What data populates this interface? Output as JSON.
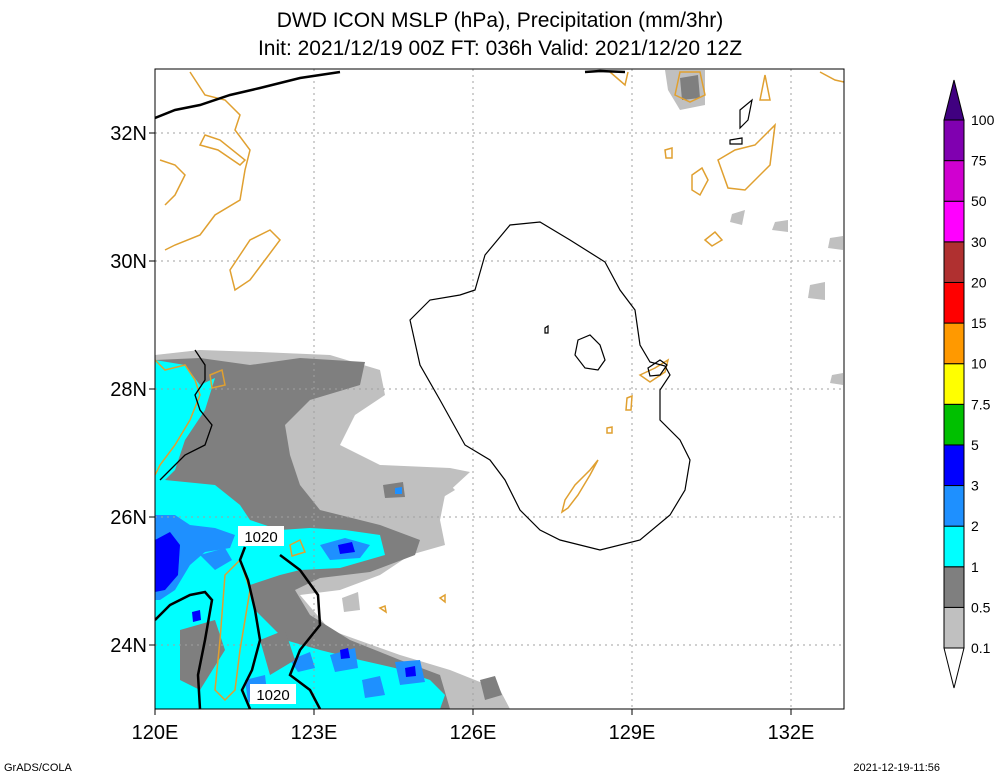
{
  "title_line1": "DWD ICON MSLP (hPa), Precipitation (mm/3hr)",
  "title_line2": "Init: 2021/12/19 00Z  FT: 036h  Valid: 2021/12/20 12Z",
  "footer_left": "GrADS/COLA",
  "footer_right": "2021-12-19-11:56",
  "map": {
    "lon_range": [
      120,
      133
    ],
    "lat_range": [
      23,
      33
    ],
    "lon_ticks": [
      {
        "value": 120,
        "label": "120E"
      },
      {
        "value": 123,
        "label": "123E"
      },
      {
        "value": 126,
        "label": "126E"
      },
      {
        "value": 129,
        "label": "129E"
      },
      {
        "value": 132,
        "label": "132E"
      }
    ],
    "lat_ticks": [
      {
        "value": 24,
        "label": "24N"
      },
      {
        "value": 26,
        "label": "26N"
      },
      {
        "value": 28,
        "label": "28N"
      },
      {
        "value": 30,
        "label": "30N"
      },
      {
        "value": 32,
        "label": "32N"
      }
    ],
    "grid": true,
    "coastline_color": "#e0a030",
    "isobar_labels": [
      "1020",
      "1020"
    ]
  },
  "colorbar": {
    "labels": [
      "0.1",
      "0.5",
      "1",
      "2",
      "3",
      "5",
      "7.5",
      "10",
      "15",
      "20",
      "30",
      "50",
      "75",
      "100"
    ],
    "colors": [
      "#c0c0c0",
      "#7f7f7f",
      "#00ffff",
      "#1e90ff",
      "#0000ff",
      "#00c000",
      "#ffff00",
      "#ff9900",
      "#ff0000",
      "#b03030",
      "#ff00ff",
      "#d000d0",
      "#8000b0",
      "#400080"
    ]
  }
}
